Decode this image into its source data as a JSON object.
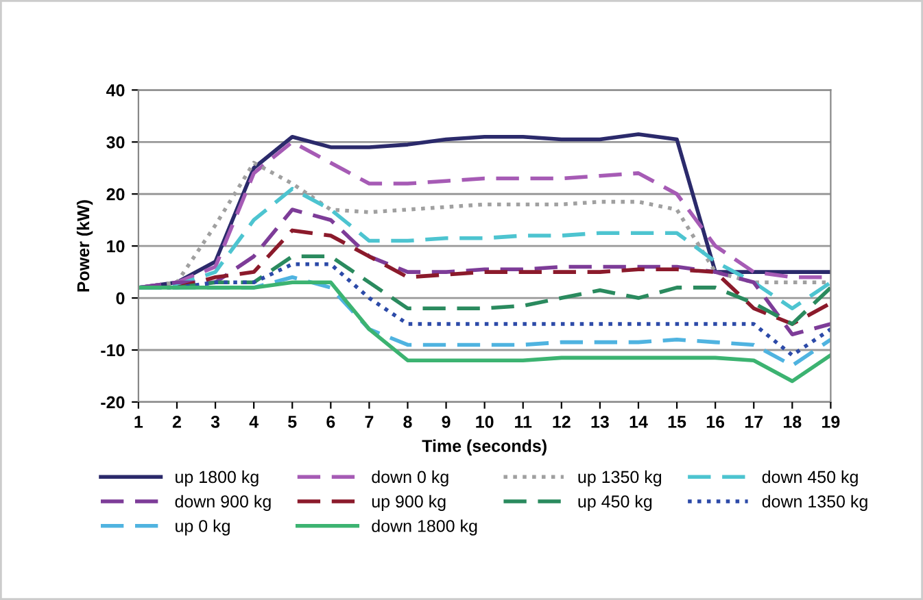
{
  "chart_data": {
    "type": "line",
    "xlabel": "Time (seconds)",
    "ylabel": "Power (kW)",
    "categories": [
      "1",
      "2",
      "3",
      "4",
      "5",
      "6",
      "7",
      "8",
      "9",
      "10",
      "11",
      "12",
      "13",
      "14",
      "15",
      "16",
      "17",
      "18",
      "19"
    ],
    "ylim": [
      -20,
      40
    ],
    "yticks": [
      -20,
      -10,
      0,
      10,
      20,
      30,
      40
    ],
    "grid": "y",
    "legend": "bottom",
    "marker": "none",
    "series": [
      {
        "name": "up 1800 kg",
        "color": "#2b2a6b",
        "line_style": "solid",
        "values": [
          2,
          3,
          7,
          25,
          31,
          29,
          29,
          29.5,
          30.5,
          31,
          31,
          30.5,
          30.5,
          31.5,
          30.5,
          5,
          5,
          5,
          5
        ]
      },
      {
        "name": "down 0 kg",
        "color": "#a65bb5",
        "line_style": "dashed",
        "values": [
          2,
          3,
          6,
          24,
          30,
          26,
          22,
          22,
          22.5,
          23,
          23,
          23,
          23.5,
          24,
          20,
          10,
          5,
          4,
          4
        ]
      },
      {
        "name": "up 1350 kg",
        "color": "#a0a0a0",
        "line_style": "dotted",
        "values": [
          2,
          3,
          14,
          26,
          22,
          17,
          16.5,
          17,
          17.5,
          18,
          18,
          18,
          18.5,
          18.5,
          17,
          5,
          3,
          3,
          3
        ]
      },
      {
        "name": "down 450 kg",
        "color": "#4dc4d0",
        "line_style": "dashed",
        "values": [
          2,
          2.5,
          5,
          15,
          21,
          17,
          11,
          11,
          11.5,
          11.5,
          12,
          12,
          12.5,
          12.5,
          12.5,
          7,
          3,
          -2,
          3
        ]
      },
      {
        "name": "down 900 kg",
        "color": "#7d3c98",
        "line_style": "dashed",
        "values": [
          2,
          3,
          3,
          8,
          17,
          15,
          8,
          5,
          5,
          5.5,
          5.5,
          6,
          6,
          6,
          6,
          5,
          3,
          -7,
          -5
        ]
      },
      {
        "name": "up 900 kg",
        "color": "#8b1a2b",
        "line_style": "dashed",
        "values": [
          2,
          2,
          4,
          5,
          13,
          12,
          8,
          4,
          4.5,
          5,
          5,
          5,
          5,
          5.5,
          5.5,
          5,
          -2,
          -5,
          -1
        ]
      },
      {
        "name": "up 450 kg",
        "color": "#2a8a5e",
        "line_style": "dashed",
        "values": [
          2,
          2,
          3,
          3,
          8,
          8,
          3,
          -2,
          -2,
          -2,
          -1.5,
          0,
          1.5,
          0,
          2,
          2,
          -1,
          -5,
          2
        ]
      },
      {
        "name": "down 1350 kg",
        "color": "#2c4aa8",
        "line_style": "dotted",
        "values": [
          2,
          2,
          3,
          3,
          6.5,
          6.5,
          0,
          -5,
          -5,
          -5,
          -5,
          -5,
          -5,
          -5,
          -5,
          -5,
          -5,
          -11,
          -6
        ]
      },
      {
        "name": "up 0 kg",
        "color": "#4fb3e0",
        "line_style": "dashed",
        "values": [
          2,
          2,
          2,
          2,
          4,
          2,
          -6,
          -9,
          -9,
          -9,
          -9,
          -8.5,
          -8.5,
          -8.5,
          -8,
          -8.5,
          -9,
          -13,
          -8
        ]
      },
      {
        "name": "down 1800 kg",
        "color": "#3cb371",
        "line_style": "solid",
        "values": [
          2,
          2,
          2,
          2,
          3,
          3,
          -6,
          -12,
          -12,
          -12,
          -12,
          -11.5,
          -11.5,
          -11.5,
          -11.5,
          -11.5,
          -12,
          -16,
          -11
        ]
      }
    ]
  }
}
